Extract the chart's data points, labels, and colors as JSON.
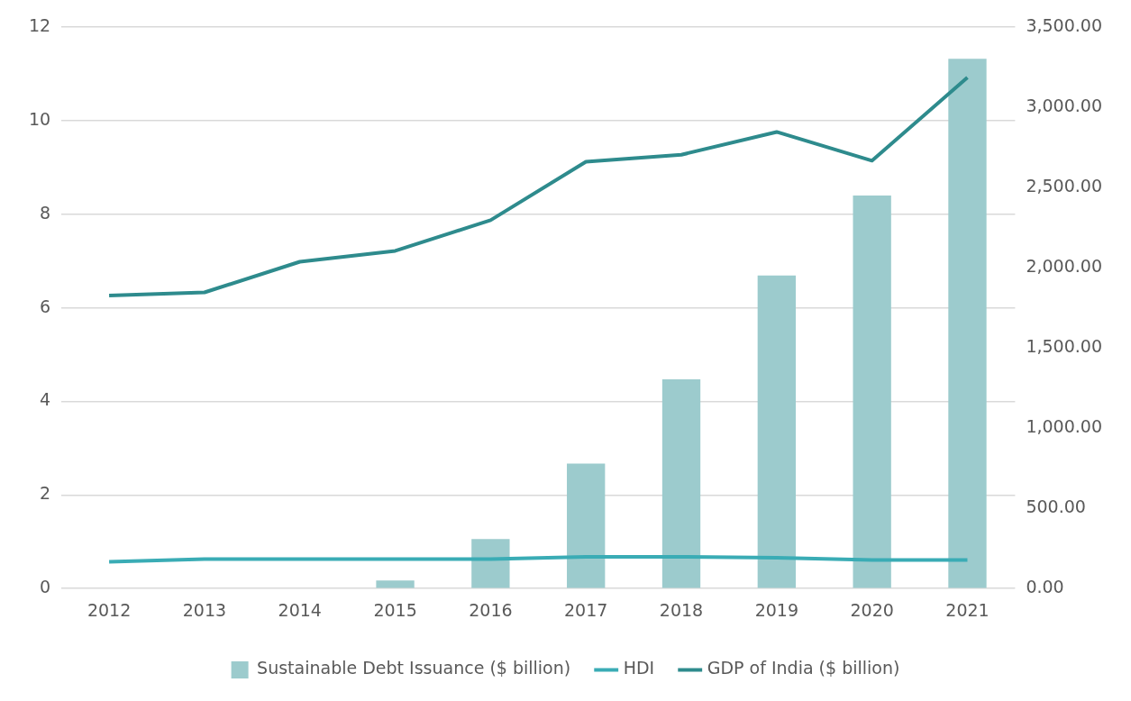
{
  "chart_data": {
    "type": "bar",
    "categories": [
      "2012",
      "2013",
      "2014",
      "2015",
      "2016",
      "2017",
      "2018",
      "2019",
      "2020",
      "2021"
    ],
    "series": [
      {
        "name": "Sustainable Debt Issuance ($ billion)",
        "color": "#9ccbcd",
        "values": [
          0,
          0,
          0,
          0.17,
          1.06,
          2.67,
          4.47,
          6.69,
          8.4,
          11.32
        ]
      },
      {
        "name": "HDI",
        "type": "line",
        "color": "#3aacb5",
        "values": [
          0.57,
          0.63,
          0.63,
          0.63,
          0.63,
          0.68,
          0.68,
          0.66,
          0.61,
          0.61
        ]
      },
      {
        "name": "GDP of India ($ billion)",
        "type": "line",
        "axis": "y2",
        "color": "#2e8b8d",
        "values": [
          1827,
          1846,
          2037,
          2105,
          2296,
          2660,
          2704,
          2846,
          2667,
          3185
        ]
      }
    ],
    "ylim": [
      0,
      12
    ],
    "yticks": [
      0,
      2,
      4,
      6,
      8,
      10,
      12
    ],
    "y2lim": [
      0,
      3500
    ],
    "y2ticks": [
      {
        "value": 0,
        "label": "0.00"
      },
      {
        "value": 500,
        "label": "500.00"
      },
      {
        "value": 1000,
        "label": "1,000.00"
      },
      {
        "value": 1500,
        "label": "1,500.00"
      },
      {
        "value": 2000,
        "label": "2,000.00"
      },
      {
        "value": 2500,
        "label": "2,500.00"
      },
      {
        "value": 3000,
        "label": "3,000.00"
      },
      {
        "value": 3500,
        "label": "3,500.00"
      }
    ],
    "grid": "y",
    "legend": "bottom"
  }
}
